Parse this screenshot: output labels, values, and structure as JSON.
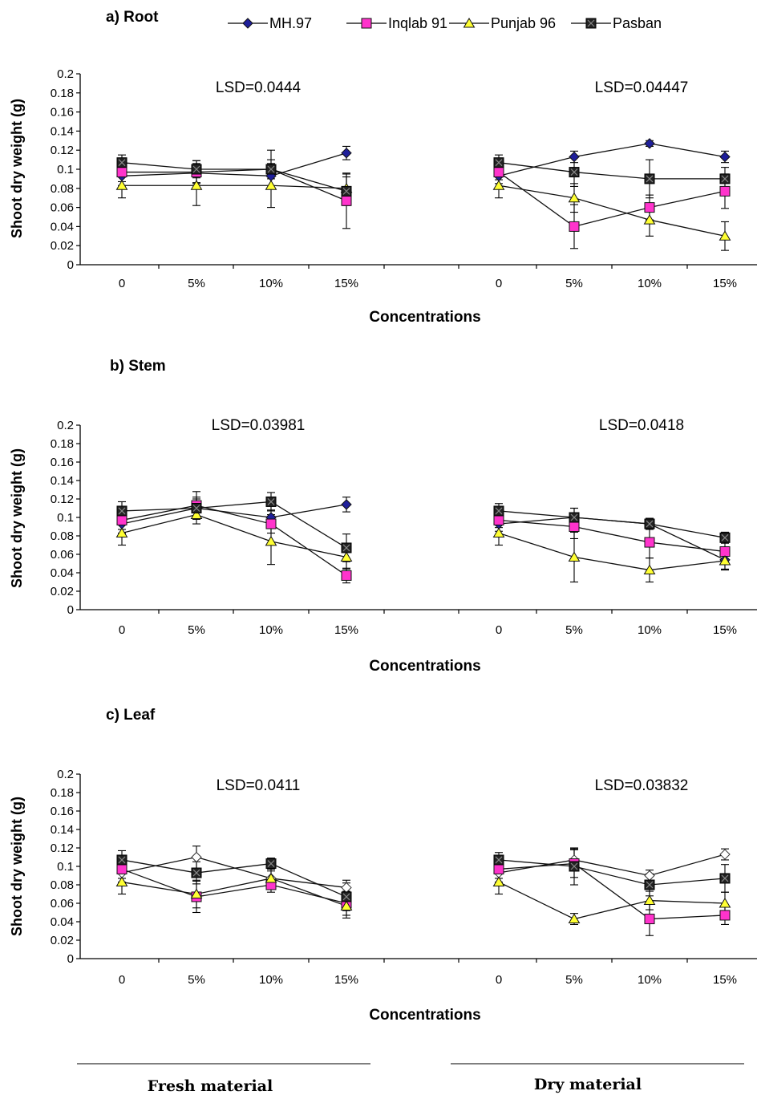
{
  "legend": [
    {
      "name": "MH.97",
      "marker": "diamond",
      "color": "#1f1f9a"
    },
    {
      "name": "Inqlab 91",
      "marker": "square",
      "color": "#ff33cc"
    },
    {
      "name": "Punjab 96",
      "marker": "triangle",
      "color": "#ffff33"
    },
    {
      "name": "Pasban",
      "marker": "xsquare",
      "color": "#333333"
    }
  ],
  "bottom_labels": {
    "fresh": "Fresh material",
    "dry": "Dry material"
  },
  "chart_data": [
    {
      "type": "line",
      "title": "a) Root",
      "ylabel": "Shoot dry weight (g)",
      "xlabel": "Concentrations",
      "ylim": [
        0,
        0.2
      ],
      "yticks": [
        "0",
        "0.02",
        "0.04",
        "0.06",
        "0.08",
        "0.1",
        "0.12",
        "0.14",
        "0.16",
        "0.18",
        "0.2"
      ],
      "categories": [
        "0",
        "5%",
        "10%",
        "15%"
      ],
      "groups": [
        {
          "lsd": "LSD=0.0444",
          "series": [
            {
              "name": "MH.97",
              "values": [
                0.093,
                0.096,
                0.093,
                0.117
              ],
              "errors": [
                0.01,
                0.01,
                0.012,
                0.007
              ]
            },
            {
              "name": "Inqlab 91",
              "values": [
                0.097,
                0.097,
                0.1,
                0.067
              ],
              "errors": [
                0.01,
                0.012,
                0.02,
                0.029
              ]
            },
            {
              "name": "Punjab 96",
              "values": [
                0.083,
                0.083,
                0.083,
                0.08
              ],
              "errors": [
                0.013,
                0.021,
                0.023,
                0.015
              ]
            },
            {
              "name": "Pasban",
              "values": [
                0.107,
                0.1,
                0.1,
                0.077
              ],
              "errors": [
                0.008,
                0.009,
                0.01,
                0.015
              ]
            }
          ]
        },
        {
          "lsd": "LSD=0.04447",
          "series": [
            {
              "name": "MH.97",
              "values": [
                0.093,
                0.113,
                0.127,
                0.113
              ],
              "errors": [
                0.008,
                0.006,
                0.003,
                0.006
              ]
            },
            {
              "name": "Inqlab 91",
              "values": [
                0.097,
                0.04,
                0.06,
                0.077
              ],
              "errors": [
                0.008,
                0.023,
                0.013,
                0.018
              ]
            },
            {
              "name": "Punjab 96",
              "values": [
                0.083,
                0.07,
                0.047,
                0.03
              ],
              "errors": [
                0.013,
                0.015,
                0.017,
                0.015
              ]
            },
            {
              "name": "Pasban",
              "values": [
                0.107,
                0.097,
                0.09,
                0.09
              ],
              "errors": [
                0.008,
                0.015,
                0.02,
                0.012
              ]
            }
          ]
        }
      ]
    },
    {
      "type": "line",
      "title": "b) Stem",
      "ylabel": "Shoot dry weight (g)",
      "xlabel": "Concentrations",
      "ylim": [
        0,
        0.2
      ],
      "yticks": [
        "0",
        "0.02",
        "0.04",
        "0.06",
        "0.08",
        "0.1",
        "0.12",
        "0.14",
        "0.16",
        "0.18",
        "0.2"
      ],
      "categories": [
        "0",
        "5%",
        "10%",
        "15%"
      ],
      "groups": [
        {
          "lsd": "LSD=0.03981",
          "series": [
            {
              "name": "MH.97",
              "values": [
                0.093,
                0.11,
                0.1,
                0.114
              ],
              "errors": [
                0.01,
                0.01,
                0.008,
                0.008
              ]
            },
            {
              "name": "Inqlab 91",
              "values": [
                0.097,
                0.113,
                0.093,
                0.037
              ],
              "errors": [
                0.01,
                0.015,
                0.01,
                0.008
              ]
            },
            {
              "name": "Punjab 96",
              "values": [
                0.083,
                0.103,
                0.074,
                0.057
              ],
              "errors": [
                0.013,
                0.01,
                0.025,
                0.013
              ]
            },
            {
              "name": "Pasban",
              "values": [
                0.107,
                0.11,
                0.117,
                0.067
              ],
              "errors": [
                0.01,
                0.012,
                0.01,
                0.015
              ]
            }
          ]
        },
        {
          "lsd": "LSD=0.0418",
          "series": [
            {
              "name": "MH.97",
              "values": [
                0.093,
                0.1,
                0.093,
                0.054
              ],
              "errors": [
                0.008,
                0.01,
                0.006,
                0.01
              ]
            },
            {
              "name": "Inqlab 91",
              "values": [
                0.097,
                0.09,
                0.073,
                0.063
              ],
              "errors": [
                0.008,
                0.013,
                0.017,
                0.01
              ]
            },
            {
              "name": "Punjab 96",
              "values": [
                0.083,
                0.057,
                0.043,
                0.053
              ],
              "errors": [
                0.013,
                0.027,
                0.013,
                0.01
              ]
            },
            {
              "name": "Pasban",
              "values": [
                0.107,
                0.1,
                0.093,
                0.078
              ],
              "errors": [
                0.008,
                0.01,
                0.006,
                0.006
              ]
            }
          ]
        }
      ]
    },
    {
      "type": "line",
      "title": "c) Leaf",
      "ylabel": "Shoot dry weight (g)",
      "xlabel": "Concentrations",
      "ylim": [
        0,
        0.2
      ],
      "yticks": [
        "0",
        "0.02",
        "0.04",
        "0.06",
        "0.08",
        "0.1",
        "0.12",
        "0.14",
        "0.16",
        "0.18",
        "0.2"
      ],
      "categories": [
        "0",
        "5%",
        "10%",
        "15%"
      ],
      "groups": [
        {
          "lsd": "LSD=0.0411",
          "series": [
            {
              "name": "MH.97",
              "values": [
                0.093,
                0.11,
                0.087,
                0.077
              ],
              "errors": [
                0.01,
                0.012,
                0.008,
                0.008
              ],
              "hollow": true
            },
            {
              "name": "Inqlab 91",
              "values": [
                0.097,
                0.067,
                0.08,
                0.06
              ],
              "errors": [
                0.01,
                0.017,
                0.008,
                0.013
              ]
            },
            {
              "name": "Punjab 96",
              "values": [
                0.083,
                0.07,
                0.087,
                0.057
              ],
              "errors": [
                0.013,
                0.015,
                0.01,
                0.013
              ]
            },
            {
              "name": "Pasban",
              "values": [
                0.107,
                0.093,
                0.103,
                0.067
              ],
              "errors": [
                0.01,
                0.012,
                0.006,
                0.015
              ]
            }
          ]
        },
        {
          "lsd": "LSD=0.03832",
          "series": [
            {
              "name": "MH.97",
              "values": [
                0.093,
                0.107,
                0.09,
                0.113
              ],
              "errors": [
                0.01,
                0.012,
                0.006,
                0.006
              ],
              "hollow": true
            },
            {
              "name": "Inqlab 91",
              "values": [
                0.097,
                0.103,
                0.043,
                0.047
              ],
              "errors": [
                0.01,
                0.015,
                0.018,
                0.01
              ]
            },
            {
              "name": "Punjab 96",
              "values": [
                0.083,
                0.043,
                0.063,
                0.06
              ],
              "errors": [
                0.013,
                0.006,
                0.01,
                0.012
              ]
            },
            {
              "name": "Pasban",
              "values": [
                0.107,
                0.1,
                0.08,
                0.087
              ],
              "errors": [
                0.008,
                0.02,
                0.012,
                0.015
              ]
            }
          ]
        }
      ]
    }
  ]
}
